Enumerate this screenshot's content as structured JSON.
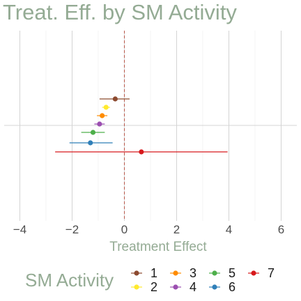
{
  "chart_data": {
    "type": "forest",
    "title": "Treat. Eff. by SM Activity",
    "xlabel": "Treatment Effect",
    "ylabel": "",
    "xlim": [
      -4.6,
      6.6
    ],
    "xticks": [
      -4,
      -2,
      0,
      2,
      4,
      6
    ],
    "reference_line": 0,
    "grid": true,
    "legend": {
      "title": "SM Activity",
      "placement": "bottom"
    },
    "series": [
      {
        "name": "1",
        "estimate": -0.35,
        "lower": -0.95,
        "upper": 0.2,
        "color": "#8c4a2f"
      },
      {
        "name": "2",
        "estimate": -0.7,
        "lower": -0.85,
        "upper": -0.55,
        "color": "#ffea2e"
      },
      {
        "name": "3",
        "estimate": -0.85,
        "lower": -1.05,
        "upper": -0.65,
        "color": "#ff8c00"
      },
      {
        "name": "4",
        "estimate": -0.95,
        "lower": -1.15,
        "upper": -0.75,
        "color": "#9b4fb0"
      },
      {
        "name": "5",
        "estimate": -1.2,
        "lower": -1.65,
        "upper": -0.75,
        "color": "#4daf4a"
      },
      {
        "name": "6",
        "estimate": -1.3,
        "lower": -2.1,
        "upper": -0.45,
        "color": "#2f7fb8"
      },
      {
        "name": "7",
        "estimate": 0.65,
        "lower": -2.65,
        "upper": 3.95,
        "color": "#d7191c"
      }
    ]
  }
}
